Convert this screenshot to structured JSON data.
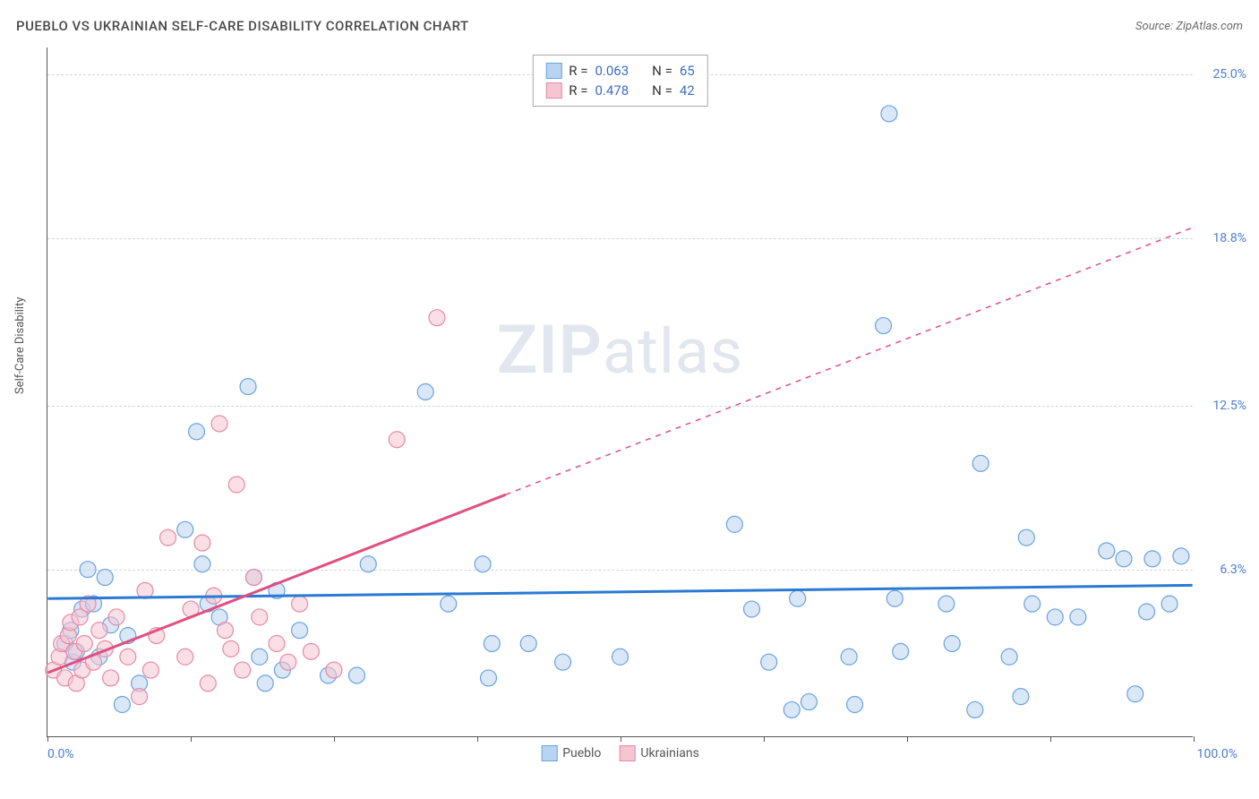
{
  "title": "PUEBLO VS UKRAINIAN SELF-CARE DISABILITY CORRELATION CHART",
  "source_label": "Source: ZipAtlas.com",
  "y_axis_label": "Self-Care Disability",
  "watermark": {
    "bold": "ZIP",
    "light": "atlas"
  },
  "colors": {
    "pueblo_fill": "#b9d4f0",
    "pueblo_stroke": "#6aa3e0",
    "ukr_fill": "#f5c5d1",
    "ukr_stroke": "#e68aa5",
    "pueblo_line": "#2a7ad4",
    "ukr_line": "#e05080",
    "axis_text": "#4a7dd4",
    "grid": "#d5d5d5"
  },
  "chart": {
    "type": "scatter",
    "xlim": [
      0,
      100
    ],
    "ylim": [
      0,
      26
    ],
    "x_min_label": "0.0%",
    "x_max_label": "100.0%",
    "y_ticks": [
      {
        "v": 6.3,
        "label": "6.3%"
      },
      {
        "v": 12.5,
        "label": "12.5%"
      },
      {
        "v": 18.8,
        "label": "18.8%"
      },
      {
        "v": 25.0,
        "label": "25.0%"
      }
    ],
    "x_tick_positions": [
      0,
      12.5,
      25,
      37.5,
      50,
      62.5,
      75,
      87.5,
      100
    ],
    "marker_radius": 9,
    "marker_opacity": 0.55,
    "line_width": 3,
    "series": [
      {
        "name": "Pueblo",
        "fill": "#b9d4f0",
        "stroke": "#6aa3e0",
        "R": "0.063",
        "N": "65",
        "trend": {
          "color": "#2a7ad4",
          "y_at_x0": 5.2,
          "y_at_x100": 5.7,
          "solid_to_x": 100
        },
        "points": [
          [
            1.5,
            3.5
          ],
          [
            2.0,
            4.0
          ],
          [
            2.2,
            2.8
          ],
          [
            2.5,
            3.2
          ],
          [
            3.0,
            4.8
          ],
          [
            3.5,
            6.3
          ],
          [
            4.0,
            5.0
          ],
          [
            4.5,
            3.0
          ],
          [
            5.0,
            6.0
          ],
          [
            5.5,
            4.2
          ],
          [
            6.5,
            1.2
          ],
          [
            7.0,
            3.8
          ],
          [
            8.0,
            2.0
          ],
          [
            12.0,
            7.8
          ],
          [
            13.0,
            11.5
          ],
          [
            13.5,
            6.5
          ],
          [
            14.0,
            5.0
          ],
          [
            15.0,
            4.5
          ],
          [
            17.5,
            13.2
          ],
          [
            18.0,
            6.0
          ],
          [
            18.5,
            3.0
          ],
          [
            19.0,
            2.0
          ],
          [
            20.0,
            5.5
          ],
          [
            20.5,
            2.5
          ],
          [
            22.0,
            4.0
          ],
          [
            24.5,
            2.3
          ],
          [
            27.0,
            2.3
          ],
          [
            28.0,
            6.5
          ],
          [
            33.0,
            13.0
          ],
          [
            35.0,
            5.0
          ],
          [
            38.0,
            6.5
          ],
          [
            38.5,
            2.2
          ],
          [
            38.8,
            3.5
          ],
          [
            42.0,
            3.5
          ],
          [
            45.0,
            2.8
          ],
          [
            50.0,
            3.0
          ],
          [
            60.0,
            8.0
          ],
          [
            61.5,
            4.8
          ],
          [
            63.0,
            2.8
          ],
          [
            65.0,
            1.0
          ],
          [
            65.5,
            5.2
          ],
          [
            66.5,
            1.3
          ],
          [
            70.0,
            3.0
          ],
          [
            70.5,
            1.2
          ],
          [
            73.0,
            15.5
          ],
          [
            73.5,
            23.5
          ],
          [
            74.0,
            5.2
          ],
          [
            74.5,
            3.2
          ],
          [
            78.5,
            5.0
          ],
          [
            79.0,
            3.5
          ],
          [
            81.0,
            1.0
          ],
          [
            81.5,
            10.3
          ],
          [
            84.0,
            3.0
          ],
          [
            85.0,
            1.5
          ],
          [
            85.5,
            7.5
          ],
          [
            86.0,
            5.0
          ],
          [
            88.0,
            4.5
          ],
          [
            90.0,
            4.5
          ],
          [
            92.5,
            7.0
          ],
          [
            94.0,
            6.7
          ],
          [
            95.0,
            1.6
          ],
          [
            96.0,
            4.7
          ],
          [
            96.5,
            6.7
          ],
          [
            98.0,
            5.0
          ],
          [
            99.0,
            6.8
          ]
        ]
      },
      {
        "name": "Ukrainians",
        "fill": "#f5c5d1",
        "stroke": "#e68aa5",
        "R": "0.478",
        "N": "42",
        "trend": {
          "color": "#e05080",
          "y_at_x0": 2.4,
          "y_at_x100": 19.2,
          "solid_to_x": 40
        },
        "points": [
          [
            0.5,
            2.5
          ],
          [
            1.0,
            3.0
          ],
          [
            1.2,
            3.5
          ],
          [
            1.5,
            2.2
          ],
          [
            1.8,
            3.8
          ],
          [
            2.0,
            4.3
          ],
          [
            2.3,
            3.2
          ],
          [
            2.5,
            2.0
          ],
          [
            2.8,
            4.5
          ],
          [
            3.0,
            2.5
          ],
          [
            3.2,
            3.5
          ],
          [
            3.5,
            5.0
          ],
          [
            4.0,
            2.8
          ],
          [
            4.5,
            4.0
          ],
          [
            5.0,
            3.3
          ],
          [
            5.5,
            2.2
          ],
          [
            6.0,
            4.5
          ],
          [
            7.0,
            3.0
          ],
          [
            8.0,
            1.5
          ],
          [
            8.5,
            5.5
          ],
          [
            9.0,
            2.5
          ],
          [
            9.5,
            3.8
          ],
          [
            10.5,
            7.5
          ],
          [
            12.0,
            3.0
          ],
          [
            12.5,
            4.8
          ],
          [
            13.5,
            7.3
          ],
          [
            14.0,
            2.0
          ],
          [
            14.5,
            5.3
          ],
          [
            15.0,
            11.8
          ],
          [
            15.5,
            4.0
          ],
          [
            16.0,
            3.3
          ],
          [
            16.5,
            9.5
          ],
          [
            17.0,
            2.5
          ],
          [
            18.0,
            6.0
          ],
          [
            18.5,
            4.5
          ],
          [
            20.0,
            3.5
          ],
          [
            21.0,
            2.8
          ],
          [
            22.0,
            5.0
          ],
          [
            23.0,
            3.2
          ],
          [
            25.0,
            2.5
          ],
          [
            30.5,
            11.2
          ],
          [
            34.0,
            15.8
          ]
        ]
      }
    ]
  },
  "legend_bottom": [
    {
      "label": "Pueblo",
      "fill": "#b9d4f0",
      "stroke": "#6aa3e0"
    },
    {
      "label": "Ukrainians",
      "fill": "#f5c5d1",
      "stroke": "#e68aa5"
    }
  ]
}
